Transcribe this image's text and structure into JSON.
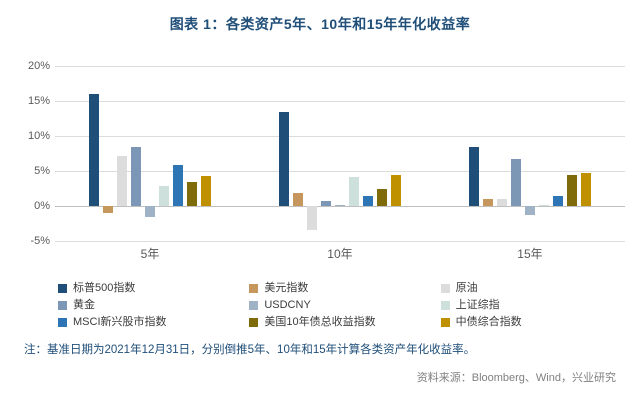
{
  "title": "图表 1：各类资产5年、10年和15年年化收益率",
  "note": "注：基准日期为2021年12月31日，分别倒推5年、10年和15年计算各类资产年化收益率。",
  "source": "资料来源：Bloomberg、Wind，兴业研究",
  "colors": {
    "title_text": "#1F4E79",
    "note_text": "#1F4E79",
    "source_text": "#808080",
    "gridline": "#DCDCDC",
    "axis_text": "#595959"
  },
  "chart_data": {
    "type": "bar",
    "title": "图表 1：各类资产5年、10年和15年年化收益率",
    "categories": [
      "5年",
      "10年",
      "15年"
    ],
    "series": [
      {
        "name": "标普500指数",
        "color": "#1F4E79",
        "values": [
          16.0,
          13.4,
          8.4
        ]
      },
      {
        "name": "美元指数",
        "color": "#C5975C",
        "values": [
          -1.0,
          1.9,
          1.0
        ]
      },
      {
        "name": "原油",
        "color": "#DCDCDC",
        "values": [
          7.2,
          -3.4,
          1.0
        ]
      },
      {
        "name": "黄金",
        "color": "#7C96B6",
        "values": [
          8.4,
          0.7,
          6.7
        ]
      },
      {
        "name": "USDCNY",
        "color": "#A0B3C6",
        "values": [
          -1.6,
          0.1,
          -1.3
        ]
      },
      {
        "name": "上证综指",
        "color": "#CDE0DC",
        "values": [
          2.9,
          4.1,
          0.2
        ]
      },
      {
        "name": "MSCI新兴股市指数",
        "color": "#2E75B6",
        "values": [
          5.9,
          1.4,
          1.5
        ]
      },
      {
        "name": "美国10年债总收益指数",
        "color": "#7F6B0A",
        "values": [
          3.4,
          2.5,
          4.4
        ]
      },
      {
        "name": "中债综合指数",
        "color": "#BF9000",
        "values": [
          4.3,
          4.4,
          4.7
        ]
      }
    ],
    "ylim": [
      -5,
      20
    ],
    "y_ticks": [
      20,
      15,
      10,
      5,
      0,
      -5
    ],
    "y_tick_labels": [
      "20%",
      "15%",
      "10%",
      "5%",
      "0%",
      "-5%"
    ],
    "grid": true,
    "legend_position": "bottom",
    "legend_columns": 3
  }
}
